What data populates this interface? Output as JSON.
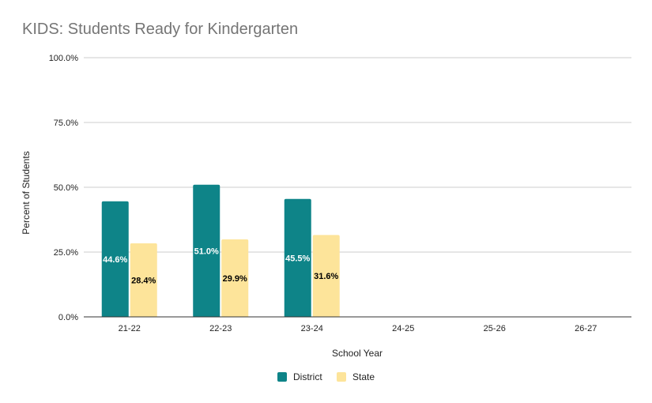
{
  "chart_data": {
    "type": "bar",
    "title": "KIDS: Students Ready for Kindergarten",
    "xlabel": "School Year",
    "ylabel": "Percent of Students",
    "categories": [
      "21-22",
      "22-23",
      "23-24",
      "24-25",
      "25-26",
      "26-27"
    ],
    "series": [
      {
        "name": "District",
        "values": [
          44.6,
          51.0,
          45.5,
          null,
          null,
          null
        ],
        "color": "#0e8488",
        "label_color": "#ffffff"
      },
      {
        "name": "State",
        "values": [
          28.4,
          29.9,
          31.6,
          null,
          null,
          null
        ],
        "color": "#fde49a",
        "label_color": "#000000"
      }
    ],
    "ylim": [
      0,
      100
    ],
    "yticks": [
      "0.0%",
      "25.0%",
      "50.0%",
      "75.0%",
      "100.0%"
    ],
    "ytick_values": [
      0,
      25,
      50,
      75,
      100
    ],
    "data_labels": [
      [
        "44.6%",
        "51.0%",
        "45.5%",
        null,
        null,
        null
      ],
      [
        "28.4%",
        "29.9%",
        "31.6%",
        null,
        null,
        null
      ]
    ],
    "grid": true,
    "legend_position": "bottom",
    "gridline_color": "#cccccc",
    "axis_color": "#333333"
  }
}
